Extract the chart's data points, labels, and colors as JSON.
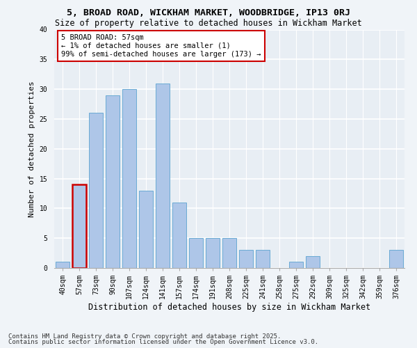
{
  "title1": "5, BROAD ROAD, WICKHAM MARKET, WOODBRIDGE, IP13 0RJ",
  "title2": "Size of property relative to detached houses in Wickham Market",
  "xlabel": "Distribution of detached houses by size in Wickham Market",
  "ylabel": "Number of detached properties",
  "categories": [
    "40sqm",
    "57sqm",
    "73sqm",
    "90sqm",
    "107sqm",
    "124sqm",
    "141sqm",
    "157sqm",
    "174sqm",
    "191sqm",
    "208sqm",
    "225sqm",
    "241sqm",
    "258sqm",
    "275sqm",
    "292sqm",
    "309sqm",
    "325sqm",
    "342sqm",
    "359sqm",
    "376sqm"
  ],
  "values": [
    1,
    14,
    26,
    29,
    30,
    13,
    31,
    11,
    5,
    5,
    5,
    3,
    3,
    0,
    1,
    2,
    0,
    0,
    0,
    0,
    3
  ],
  "bar_color": "#aec6e8",
  "bar_edge_color": "#6aaad4",
  "highlight_index": 1,
  "highlight_bar_edge_color": "#cc0000",
  "annotation_text": "5 BROAD ROAD: 57sqm\n← 1% of detached houses are smaller (1)\n99% of semi-detached houses are larger (173) →",
  "annotation_box_color": "#ffffff",
  "annotation_box_edge_color": "#cc0000",
  "footnote1": "Contains HM Land Registry data © Crown copyright and database right 2025.",
  "footnote2": "Contains public sector information licensed under the Open Government Licence v3.0.",
  "bg_color": "#e8eef4",
  "grid_color": "#ffffff",
  "fig_bg_color": "#f0f4f8",
  "ylim": [
    0,
    40
  ],
  "yticks": [
    0,
    5,
    10,
    15,
    20,
    25,
    30,
    35,
    40
  ],
  "title1_fontsize": 9.5,
  "title2_fontsize": 8.5,
  "xlabel_fontsize": 8.5,
  "ylabel_fontsize": 8,
  "tick_fontsize": 7,
  "annotation_fontsize": 7.5,
  "footnote_fontsize": 6.5
}
